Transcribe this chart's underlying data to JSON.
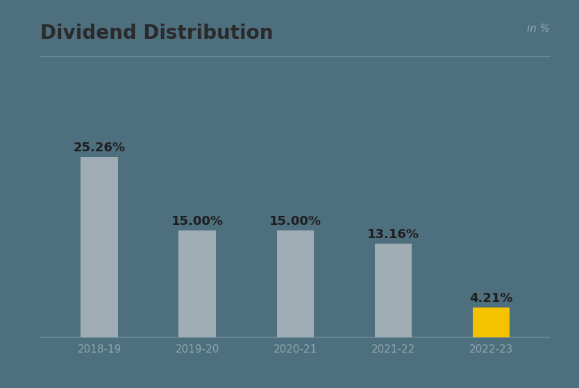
{
  "title": "Dividend Distribution",
  "subtitle": "in %",
  "categories": [
    "2018-19",
    "2019-20",
    "2020-21",
    "2021-22",
    "2022-23"
  ],
  "values": [
    25.26,
    15.0,
    15.0,
    13.16,
    4.21
  ],
  "labels": [
    "25.26%",
    "15.00%",
    "15.00%",
    "13.16%",
    "4.21%"
  ],
  "bar_colors": [
    "#a0adb5",
    "#a0adb5",
    "#a0adb5",
    "#a0adb5",
    "#f5c200"
  ],
  "background_color": "#4e6f7e",
  "title_color": "#2a2a2a",
  "subtitle_color": "#8fa5b0",
  "label_color": "#1e1e1e",
  "tick_color": "#8fa5b0",
  "axis_line_color": "#6a8a98",
  "title_fontsize": 20,
  "subtitle_fontsize": 11,
  "label_fontsize": 13,
  "tick_fontsize": 11,
  "ylim": [
    0,
    32
  ],
  "bar_width": 0.38,
  "figsize": [
    8.34,
    5.59
  ],
  "dpi": 100
}
